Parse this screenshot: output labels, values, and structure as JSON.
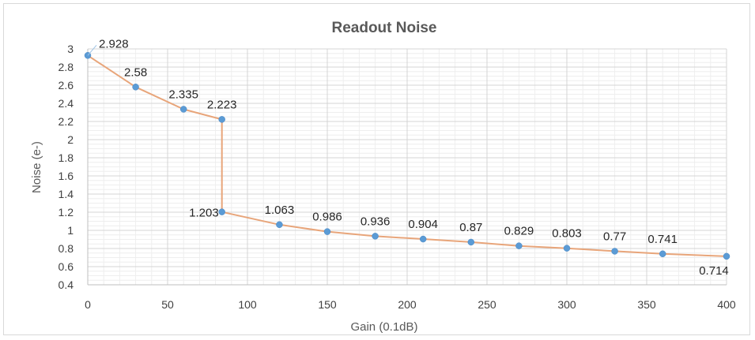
{
  "chart_data": {
    "type": "scatter",
    "title": "Readout Noise",
    "xlabel": "Gain (0.1dB)",
    "ylabel": "Noise (e-)",
    "xlim": [
      0,
      400
    ],
    "ylim": [
      0.4,
      3
    ],
    "xticks": [
      0,
      50,
      100,
      150,
      200,
      250,
      300,
      350,
      400
    ],
    "yticks": [
      0.4,
      0.6,
      0.8,
      1,
      1.2,
      1.4,
      1.6,
      1.8,
      2,
      2.2,
      2.4,
      2.6,
      2.8,
      3
    ],
    "xtick_labels": [
      "0",
      "50",
      "100",
      "150",
      "200",
      "250",
      "300",
      "350",
      "400"
    ],
    "ytick_labels": [
      "0.4",
      "0.6",
      "0.8",
      "1",
      "1.2",
      "1.4",
      "1.6",
      "1.8",
      "2",
      "2.2",
      "2.4",
      "2.6",
      "2.8",
      "3"
    ],
    "grid": true,
    "legend": "none",
    "line_color": "#e8a57a",
    "marker_color": "#5b9bd5",
    "series": [
      {
        "x": [
          0,
          30,
          60,
          84,
          84,
          120,
          150,
          180,
          210,
          240,
          270,
          300,
          330,
          360,
          400
        ],
        "y": [
          2.928,
          2.58,
          2.335,
          2.223,
          1.203,
          1.063,
          0.986,
          0.936,
          0.904,
          0.87,
          0.829,
          0.803,
          0.77,
          0.741,
          0.714
        ],
        "labels": [
          "2.928",
          "2.58",
          "2.335",
          "2.223",
          "1.203",
          "1.063",
          "0.986",
          "0.936",
          "0.904",
          "0.87",
          "0.829",
          "0.803",
          "0.77",
          "0.741",
          "0.714"
        ]
      }
    ]
  }
}
